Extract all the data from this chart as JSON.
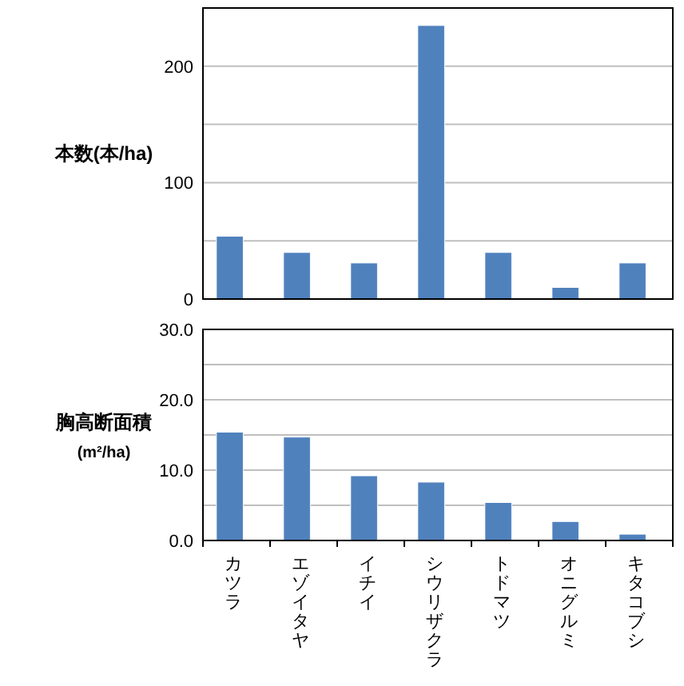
{
  "chart_data": [
    {
      "type": "bar",
      "ylabel": "本数(本/ha)",
      "categories": [
        null,
        null,
        null,
        null,
        null,
        null,
        null
      ],
      "values": [
        54,
        40,
        31,
        235,
        40,
        10,
        31
      ],
      "color": "#4f81bd",
      "ylim": [
        0,
        250
      ],
      "yticks": [
        0,
        {
          "value": 50,
          "label": null
        },
        100,
        {
          "value": 150,
          "label": null
        },
        200,
        {
          "value": 250,
          "label": null
        }
      ],
      "grid": "y",
      "tick_labels": "y"
    },
    {
      "type": "bar",
      "ylabel": "胸高断面積\n(m²/ha)",
      "categories": [
        "カツラ",
        "エゾイタヤ",
        "イチイ",
        "シウリザクラ",
        "トドマツ",
        "オニグルミ",
        "キタコブシ"
      ],
      "values": [
        15.4,
        14.7,
        9.2,
        8.3,
        5.4,
        2.7,
        0.9
      ],
      "color": "#4f81bd",
      "ylim": [
        0,
        30
      ],
      "yticks": [
        {
          "value": 0,
          "label": "0.0"
        },
        {
          "value": 5,
          "label": null
        },
        {
          "value": 10,
          "label": "10.0"
        },
        {
          "value": 15,
          "label": null
        },
        {
          "value": 20,
          "label": "20.0"
        },
        {
          "value": 25,
          "label": null
        },
        {
          "value": 30,
          "label": "30.0"
        }
      ],
      "grid": "y"
    }
  ]
}
